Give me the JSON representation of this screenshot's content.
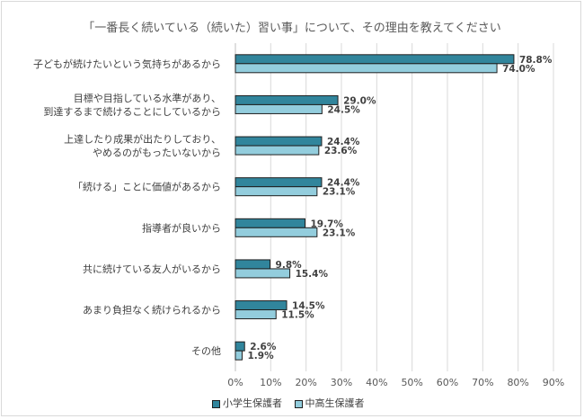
{
  "chart_data": {
    "type": "bar",
    "orientation": "horizontal",
    "title": "「一番長く続いている（続いた）習い事」について、その理由を教えてください",
    "categories": [
      [
        "子どもが続けたいという気持ちがあるから"
      ],
      [
        "目標や目指している水準があり、",
        "到達するまで続けることにしているから"
      ],
      [
        "上達したり成果が出たりしており、",
        "やめるのがもったいないから"
      ],
      [
        "「続ける」ことに価値があるから"
      ],
      [
        "指導者が良いから"
      ],
      [
        "共に続けている友人がいるから"
      ],
      [
        "あまり負担なく続けられるから"
      ],
      [
        "その他"
      ]
    ],
    "series": [
      {
        "name": "小学生保護者",
        "color": "#31859c",
        "values": [
          78.8,
          29.0,
          24.4,
          24.4,
          19.7,
          9.8,
          14.5,
          2.6
        ]
      },
      {
        "name": "中高生保護者",
        "color": "#93cddd",
        "values": [
          74.0,
          24.5,
          23.6,
          23.1,
          23.1,
          15.4,
          11.5,
          1.9
        ]
      }
    ],
    "xlim": [
      0,
      90
    ],
    "xticks": [
      0,
      10,
      20,
      30,
      40,
      50,
      60,
      70,
      80,
      90
    ],
    "tick_suffix": "%",
    "grid": true,
    "legend_position": "bottom-center"
  }
}
